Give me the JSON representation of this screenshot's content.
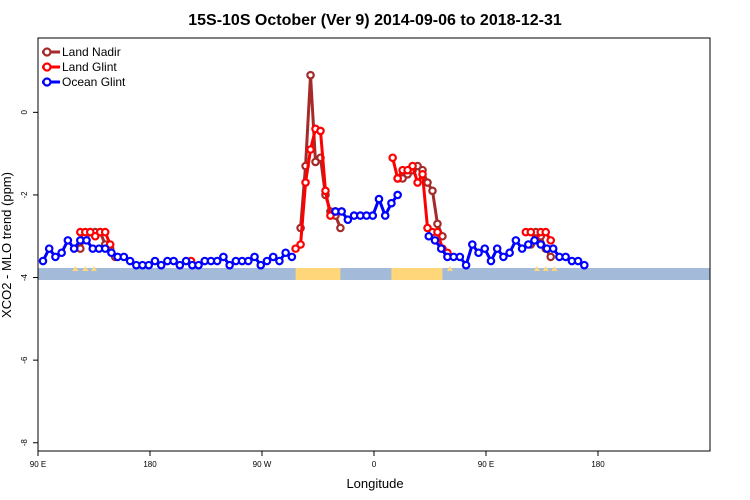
{
  "chart_data": {
    "type": "line",
    "title": "15S-10S October (Ver 9)   2014-09-06 to 2018-12-31",
    "xlabel": "Longitude",
    "ylabel": "XCO2 - MLO trend (ppm)",
    "xlim": [
      -90,
      450
    ],
    "ylim": [
      -8.2,
      1.8
    ],
    "x_ticks": [
      {
        "value": -90,
        "label": "90 E"
      },
      {
        "value": 0,
        "label": "180"
      },
      {
        "value": 90,
        "label": "90 W"
      },
      {
        "value": 180,
        "label": "0"
      },
      {
        "value": 270,
        "label": "90 E"
      },
      {
        "value": 360,
        "label": "180"
      }
    ],
    "y_ticks": [
      {
        "value": 0,
        "label": "0"
      },
      {
        "value": -2,
        "label": "-2"
      },
      {
        "value": -4,
        "label": "-4"
      },
      {
        "value": -6,
        "label": "-6"
      },
      {
        "value": -8,
        "label": "-8"
      }
    ],
    "legend_position": "top-left",
    "grid": false,
    "series": [
      {
        "name": "Land Nadir",
        "color": "#a52a2a",
        "x": [
          -56,
          -52,
          -48,
          -44,
          -40,
          -36,
          -32,
          -28,
          121,
          125,
          129,
          133,
          137,
          141,
          145,
          149,
          153,
          199,
          203,
          207,
          211,
          215,
          219,
          223,
          227,
          231,
          235,
          306,
          310,
          314,
          318,
          322
        ],
        "y": [
          -3.3,
          -3.0,
          -2.9,
          -2.9,
          -2.9,
          -3.2,
          -3.3,
          -3.5,
          -2.8,
          -1.3,
          0.9,
          -1.2,
          -1.1,
          -2.0,
          -2.4,
          -2.5,
          -2.8,
          -1.6,
          -1.6,
          -1.5,
          -1.4,
          -1.3,
          -1.4,
          -1.7,
          -1.9,
          -2.7,
          -3.0,
          -3.2,
          -2.9,
          -3.0,
          -3.3,
          -3.5
        ]
      },
      {
        "name": "Land Glint",
        "color": "#ff0000",
        "x": [
          -56,
          -52,
          -48,
          -44,
          -40,
          -36,
          -32,
          33,
          117,
          121,
          125,
          129,
          133,
          137,
          141,
          145,
          149,
          195,
          199,
          203,
          207,
          211,
          215,
          219,
          223,
          227,
          231,
          235,
          239,
          302,
          306,
          310,
          314,
          318,
          322
        ],
        "y": [
          -2.9,
          -2.9,
          -2.9,
          -3.0,
          -2.9,
          -2.9,
          -3.2,
          -3.6,
          -3.3,
          -3.2,
          -1.7,
          -0.9,
          -0.4,
          -0.45,
          -1.9,
          -2.5,
          -2.4,
          -1.1,
          -1.6,
          -1.4,
          -1.4,
          -1.3,
          -1.7,
          -1.5,
          -2.8,
          -2.9,
          -2.9,
          -3.3,
          -3.4,
          -2.9,
          -2.9,
          -3.1,
          -2.9,
          -2.9,
          -3.1
        ]
      },
      {
        "name": "Ocean Glint",
        "color": "#0000ff",
        "x": [
          -86,
          -81,
          -76,
          -71,
          -66,
          -61,
          -56,
          -51,
          -46,
          -41,
          -36,
          -31,
          -26,
          -21,
          -16,
          -11,
          -6,
          -1,
          4,
          9,
          14,
          19,
          24,
          29,
          34,
          39,
          44,
          49,
          54,
          59,
          64,
          69,
          74,
          79,
          84,
          89,
          94,
          99,
          104,
          109,
          114,
          149,
          154,
          159,
          164,
          169,
          174,
          179,
          184,
          189,
          194,
          199,
          224,
          229,
          234,
          239,
          244,
          249,
          254,
          259,
          264,
          269,
          274,
          279,
          284,
          289,
          294,
          299,
          304,
          309,
          314,
          319,
          324,
          329,
          334,
          339,
          344,
          349
        ],
        "y": [
          -3.6,
          -3.3,
          -3.5,
          -3.4,
          -3.1,
          -3.3,
          -3.1,
          -3.1,
          -3.3,
          -3.3,
          -3.3,
          -3.4,
          -3.5,
          -3.5,
          -3.6,
          -3.7,
          -3.7,
          -3.7,
          -3.6,
          -3.7,
          -3.6,
          -3.6,
          -3.7,
          -3.6,
          -3.7,
          -3.7,
          -3.6,
          -3.6,
          -3.6,
          -3.5,
          -3.7,
          -3.6,
          -3.6,
          -3.6,
          -3.5,
          -3.7,
          -3.6,
          -3.5,
          -3.6,
          -3.4,
          -3.5,
          -2.4,
          -2.4,
          -2.6,
          -2.5,
          -2.5,
          -2.5,
          -2.5,
          -2.1,
          -2.5,
          -2.2,
          -2.0,
          -3.0,
          -3.1,
          -3.3,
          -3.5,
          -3.5,
          -3.5,
          -3.7,
          -3.2,
          -3.4,
          -3.3,
          -3.6,
          -3.3,
          -3.5,
          -3.4,
          -3.1,
          -3.3,
          -3.2,
          -3.1,
          -3.2,
          -3.3,
          -3.3,
          -3.5,
          -3.5,
          -3.6,
          -3.6,
          -3.7
        ]
      }
    ]
  }
}
